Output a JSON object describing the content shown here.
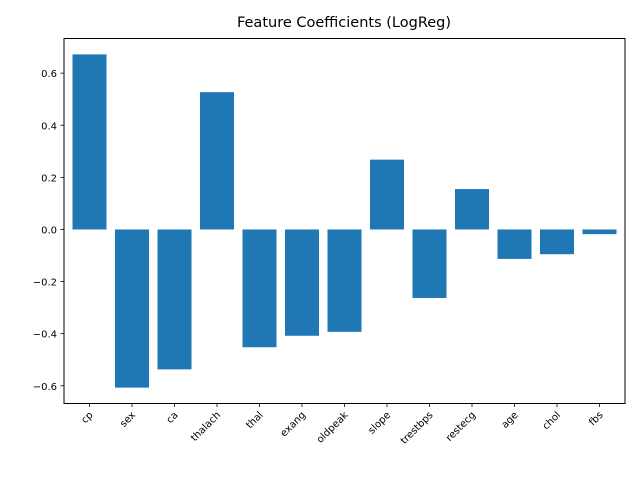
{
  "chart_data": {
    "type": "bar",
    "title": "Feature Coefficients (LogReg)",
    "xlabel": "",
    "ylabel": "",
    "categories": [
      "cp",
      "sex",
      "ca",
      "thalach",
      "thal",
      "exang",
      "oldpeak",
      "slope",
      "trestbps",
      "restecg",
      "age",
      "chol",
      "fbs"
    ],
    "values": [
      0.672,
      -0.607,
      -0.537,
      0.527,
      -0.452,
      -0.408,
      -0.393,
      0.268,
      -0.263,
      0.155,
      -0.113,
      -0.095,
      -0.018
    ],
    "ylim": [
      -0.668,
      0.733
    ],
    "yticks": [
      -0.6,
      -0.4,
      -0.2,
      0.0,
      0.2,
      0.4,
      0.6
    ],
    "ytick_labels": [
      "−0.6",
      "−0.4",
      "−0.2",
      "0.0",
      "0.2",
      "0.4",
      "0.6"
    ],
    "bar_color": "#1f77b4",
    "grid": false,
    "xtick_rotation": 45
  }
}
